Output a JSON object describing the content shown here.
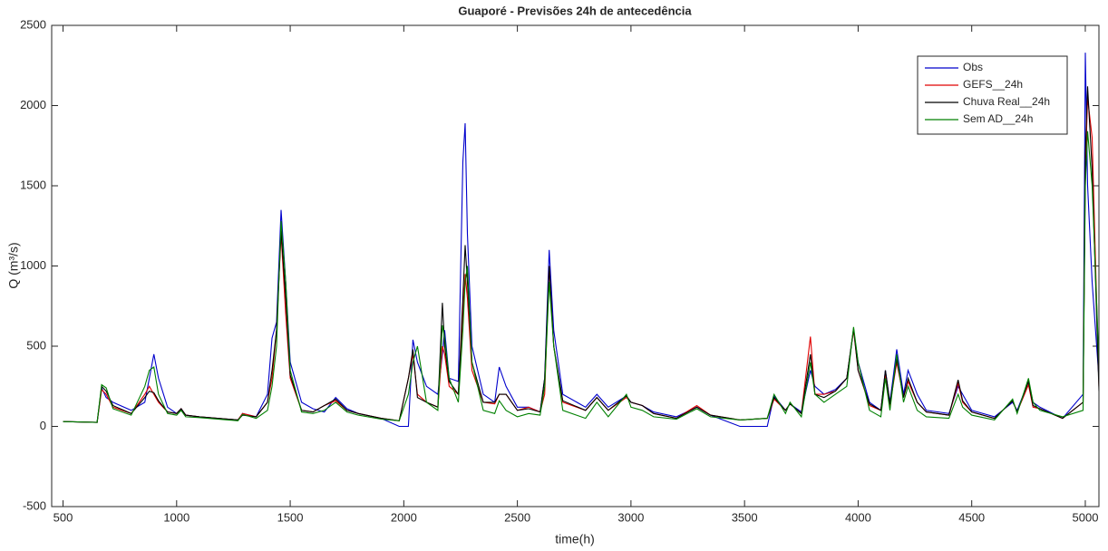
{
  "chart_data": {
    "type": "line",
    "title": "Guaporé - Previsões 24h de antecedência",
    "xlabel": "time(h)",
    "ylabel": "Q (m³/s)",
    "xlim": [
      450,
      5060
    ],
    "xticks": [
      500,
      1000,
      1500,
      2000,
      2500,
      3000,
      3500,
      4000,
      4500,
      5000
    ],
    "ylim": [
      -500,
      2500
    ],
    "yticks": [
      -500,
      0,
      500,
      1000,
      1500,
      2000,
      2500
    ],
    "legend": "upper right",
    "x": [
      500,
      650,
      670,
      690,
      720,
      800,
      860,
      880,
      900,
      920,
      960,
      1000,
      1020,
      1040,
      1100,
      1270,
      1290,
      1350,
      1400,
      1420,
      1440,
      1460,
      1480,
      1500,
      1550,
      1600,
      1650,
      1700,
      1750,
      1800,
      1900,
      1980,
      2020,
      2040,
      2060,
      2100,
      2150,
      2170,
      2180,
      2200,
      2240,
      2260,
      2270,
      2280,
      2300,
      2350,
      2400,
      2420,
      2450,
      2500,
      2550,
      2600,
      2620,
      2640,
      2660,
      2700,
      2800,
      2850,
      2900,
      2980,
      3000,
      3050,
      3100,
      3200,
      3290,
      3350,
      3480,
      3600,
      3630,
      3680,
      3700,
      3750,
      3790,
      3810,
      3850,
      3900,
      3950,
      3980,
      4000,
      4050,
      4100,
      4120,
      4140,
      4170,
      4200,
      4220,
      4260,
      4300,
      4400,
      4440,
      4460,
      4500,
      4600,
      4680,
      4700,
      4750,
      4770,
      4800,
      4900,
      4990,
      5000,
      5010,
      5030,
      5060
    ],
    "series": [
      {
        "name": "Obs",
        "color": "#0000cc",
        "values": [
          30,
          25,
          240,
          180,
          150,
          100,
          150,
          300,
          450,
          300,
          120,
          80,
          110,
          70,
          60,
          40,
          80,
          60,
          200,
          550,
          650,
          1350,
          900,
          400,
          150,
          110,
          90,
          180,
          110,
          80,
          50,
          0,
          0,
          540,
          400,
          250,
          200,
          450,
          600,
          300,
          280,
          1650,
          1890,
          1200,
          500,
          200,
          150,
          370,
          250,
          120,
          120,
          90,
          300,
          1100,
          600,
          200,
          120,
          200,
          120,
          190,
          150,
          130,
          90,
          60,
          120,
          70,
          0,
          0,
          190,
          100,
          140,
          90,
          350,
          250,
          200,
          230,
          300,
          600,
          400,
          150,
          100,
          350,
          150,
          480,
          200,
          350,
          200,
          100,
          80,
          250,
          200,
          100,
          60,
          150,
          100,
          280,
          150,
          120,
          50,
          200,
          2330,
          1500,
          900,
          300
        ]
      },
      {
        "name": "GEFS__24h",
        "color": "#e00000",
        "values": [
          30,
          25,
          230,
          200,
          120,
          80,
          200,
          250,
          200,
          150,
          90,
          80,
          110,
          70,
          60,
          40,
          80,
          60,
          150,
          300,
          600,
          1200,
          700,
          300,
          100,
          90,
          130,
          160,
          100,
          80,
          50,
          35,
          300,
          450,
          200,
          150,
          120,
          500,
          450,
          250,
          200,
          700,
          950,
          800,
          350,
          150,
          140,
          200,
          200,
          100,
          120,
          90,
          200,
          1000,
          500,
          150,
          100,
          180,
          100,
          180,
          150,
          130,
          80,
          50,
          130,
          70,
          40,
          50,
          170,
          100,
          140,
          80,
          560,
          200,
          200,
          220,
          300,
          600,
          350,
          130,
          100,
          320,
          130,
          400,
          180,
          280,
          150,
          90,
          70,
          270,
          150,
          90,
          50,
          160,
          90,
          260,
          120,
          110,
          50,
          150,
          1600,
          2050,
          1800,
          250
        ]
      },
      {
        "name": "Chuva Real__24h",
        "color": "#000000",
        "values": [
          30,
          25,
          250,
          220,
          130,
          80,
          180,
          220,
          210,
          160,
          90,
          80,
          110,
          70,
          60,
          40,
          70,
          60,
          150,
          350,
          600,
          1220,
          800,
          320,
          100,
          90,
          130,
          170,
          100,
          80,
          50,
          35,
          300,
          480,
          180,
          150,
          120,
          770,
          500,
          280,
          200,
          800,
          1130,
          900,
          400,
          150,
          150,
          200,
          200,
          100,
          110,
          90,
          300,
          1000,
          500,
          160,
          100,
          180,
          100,
          190,
          150,
          130,
          80,
          50,
          120,
          70,
          40,
          50,
          180,
          100,
          140,
          80,
          450,
          200,
          180,
          220,
          300,
          610,
          350,
          140,
          100,
          350,
          140,
          420,
          180,
          300,
          150,
          90,
          70,
          290,
          160,
          90,
          50,
          160,
          90,
          280,
          130,
          110,
          50,
          150,
          1700,
          2120,
          1600,
          220
        ]
      },
      {
        "name": "Sem AD__24h",
        "color": "#008000",
        "values": [
          30,
          25,
          260,
          240,
          110,
          70,
          250,
          350,
          370,
          200,
          80,
          70,
          100,
          60,
          55,
          35,
          75,
          50,
          100,
          250,
          500,
          1280,
          900,
          350,
          90,
          80,
          100,
          150,
          90,
          70,
          45,
          35,
          200,
          400,
          500,
          150,
          100,
          630,
          550,
          300,
          150,
          600,
          900,
          1000,
          400,
          100,
          80,
          160,
          100,
          60,
          80,
          70,
          250,
          900,
          500,
          100,
          50,
          150,
          60,
          200,
          120,
          100,
          60,
          45,
          110,
          60,
          40,
          50,
          200,
          80,
          150,
          60,
          400,
          200,
          150,
          200,
          250,
          620,
          400,
          100,
          60,
          300,
          100,
          450,
          150,
          250,
          100,
          60,
          50,
          200,
          120,
          70,
          40,
          170,
          80,
          300,
          150,
          100,
          60,
          100,
          1500,
          1840,
          1500,
          400
        ]
      }
    ]
  }
}
